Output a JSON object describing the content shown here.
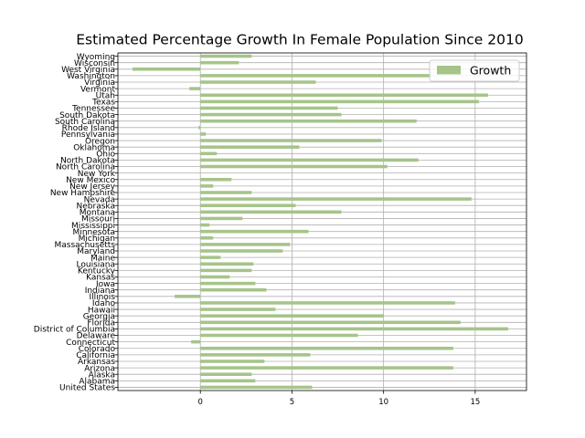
{
  "chart_data": {
    "type": "bar",
    "orientation": "horizontal",
    "title": "Estimated Percentage Growth In Female Population Since 2010",
    "xlabel": "",
    "ylabel": "",
    "xlim": [
      -4.5,
      17.8
    ],
    "xticks": [
      0,
      5,
      10,
      15
    ],
    "grid": true,
    "legend": "upper-right",
    "bar_color": "#a6c48a",
    "series": [
      {
        "name": "Growth",
        "categories": [
          "United States",
          "Alabama",
          "Alaska",
          "Arizona",
          "Arkansas",
          "California",
          "Colorado",
          "Connecticut",
          "Delaware",
          "District of Columbia",
          "Florida",
          "Georgia",
          "Hawaii",
          "Idaho",
          "Illinois",
          "Indiana",
          "Iowa",
          "Kansas",
          "Kentucky",
          "Louisiana",
          "Maine",
          "Maryland",
          "Massachusetts",
          "Michigan",
          "Minnesota",
          "Mississippi",
          "Missouri",
          "Montana",
          "Nebraska",
          "Nevada",
          "New Hampshire",
          "New Jersey",
          "New Mexico",
          "New York",
          "North Carolina",
          "North Dakota",
          "Ohio",
          "Oklahoma",
          "Oregon",
          "Pennsylvania",
          "Rhode Island",
          "South Carolina",
          "South Dakota",
          "Tennessee",
          "Texas",
          "Utah",
          "Vermont",
          "Virginia",
          "Washington",
          "West Virginia",
          "Wisconsin",
          "Wyoming"
        ],
        "values": [
          6.1,
          3.0,
          2.8,
          13.8,
          3.5,
          6.0,
          13.8,
          -0.5,
          8.6,
          16.8,
          14.2,
          10.0,
          4.1,
          13.9,
          -1.4,
          3.6,
          3.0,
          1.6,
          2.8,
          2.9,
          1.1,
          4.5,
          4.9,
          0.7,
          5.9,
          0.5,
          2.3,
          7.7,
          5.2,
          14.8,
          2.8,
          0.7,
          1.7,
          0.0,
          10.2,
          11.9,
          0.9,
          5.4,
          9.9,
          0.3,
          -0.1,
          11.8,
          7.7,
          7.5,
          15.2,
          15.7,
          -0.6,
          6.3,
          12.6,
          -3.7,
          2.1,
          2.8
        ]
      }
    ]
  }
}
